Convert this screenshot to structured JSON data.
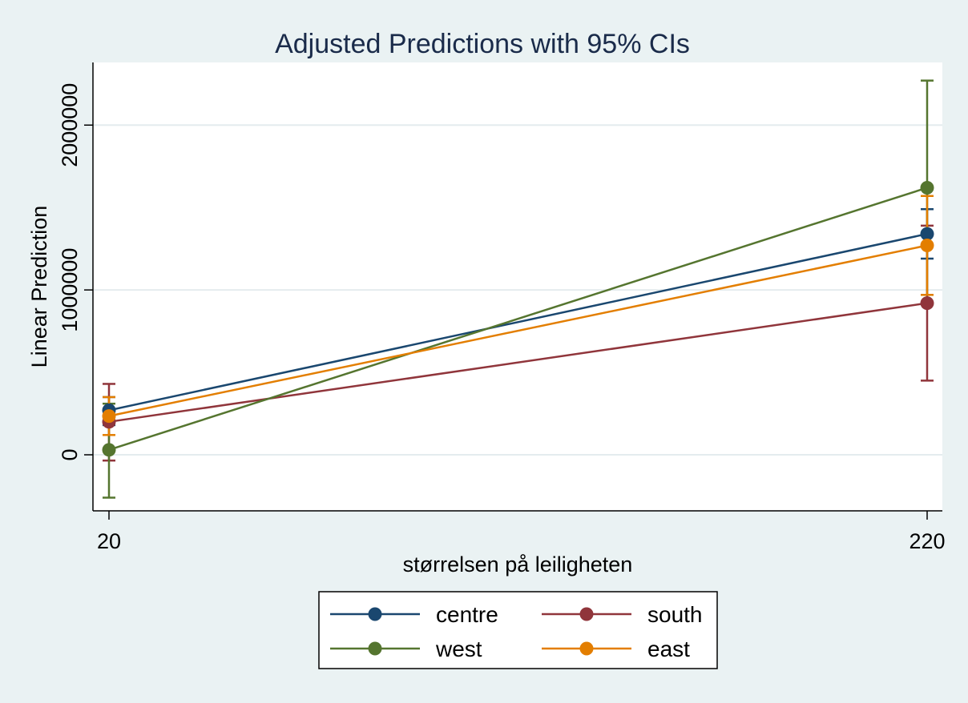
{
  "chart_data": {
    "type": "line",
    "title": "Adjusted Predictions with 95% CIs",
    "xlabel": "størrelsen på leiligheten",
    "ylabel": "Linear Prediction",
    "x": [
      20,
      220
    ],
    "x_tick_labels": [
      "20",
      "220"
    ],
    "y_ticks": [
      0,
      1000000,
      2000000
    ],
    "y_tick_labels": [
      "0",
      "1000000",
      "2000000"
    ],
    "ylim": [
      -340000,
      2380000
    ],
    "grid": true,
    "legend_position": "bottom",
    "series": [
      {
        "name": "centre",
        "color": "#1a476f",
        "values": [
          270000,
          1340000
        ],
        "ci_low": [
          180000,
          1190000
        ],
        "ci_high": [
          350000,
          1490000
        ]
      },
      {
        "name": "south",
        "color": "#90353b",
        "values": [
          200000,
          920000
        ],
        "ci_low": [
          -35000,
          450000
        ],
        "ci_high": [
          430000,
          1390000
        ]
      },
      {
        "name": "west",
        "color": "#55752f",
        "values": [
          30000,
          1620000
        ],
        "ci_low": [
          -260000,
          970000
        ],
        "ci_high": [
          310000,
          2270000
        ]
      },
      {
        "name": "east",
        "color": "#e37e00",
        "values": [
          235000,
          1270000
        ],
        "ci_low": [
          120000,
          970000
        ],
        "ci_high": [
          350000,
          1570000
        ]
      }
    ]
  }
}
